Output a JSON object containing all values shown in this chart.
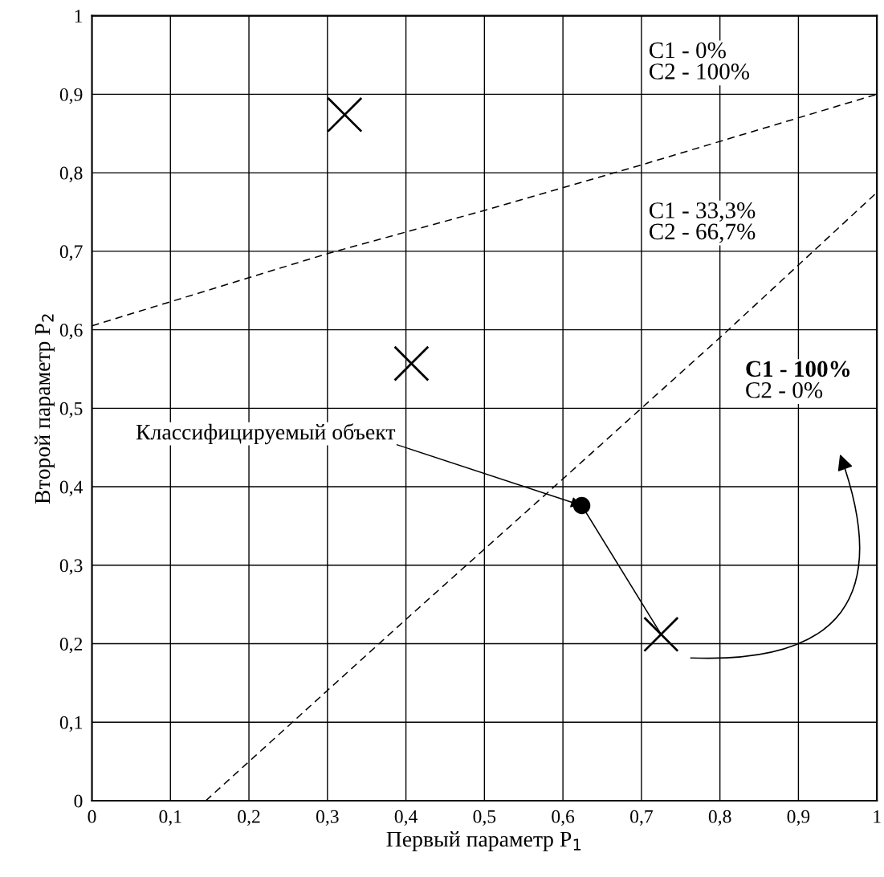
{
  "chart_data": {
    "type": "scatter",
    "xlabel": "Первый параметр P$_{1}$",
    "ylabel": "Второй параметр P$_{2}$",
    "xlim": [
      0,
      1
    ],
    "ylim": [
      0,
      1
    ],
    "xticks": [
      0,
      {
        "value": 0.1,
        "label": "0,1"
      },
      {
        "value": 0.2,
        "label": "0,2"
      },
      {
        "value": 0.3,
        "label": "0,3"
      },
      {
        "value": 0.4,
        "label": "0,4"
      },
      {
        "value": 0.5,
        "label": "0,5"
      },
      {
        "value": 0.6,
        "label": "0,6"
      },
      {
        "value": 0.7,
        "label": "0,7"
      },
      {
        "value": 0.8,
        "label": "0,8"
      },
      {
        "value": 0.9,
        "label": "0,9"
      },
      1
    ],
    "yticks": [
      0,
      {
        "value": 0.1,
        "label": "0,1"
      },
      {
        "value": 0.2,
        "label": "0,2"
      },
      {
        "value": 0.3,
        "label": "0,3"
      },
      {
        "value": 0.4,
        "label": "0,4"
      },
      {
        "value": 0.5,
        "label": "0,5"
      },
      {
        "value": 0.6,
        "label": "0,6"
      },
      {
        "value": 0.7,
        "label": "0,7"
      },
      {
        "value": 0.8,
        "label": "0,8"
      },
      {
        "value": 0.9,
        "label": "0,9"
      },
      1
    ],
    "grid": true,
    "series": [
      {
        "x": [
          0.322,
          0.407,
          0.725
        ],
        "values": [
          0.874,
          0.557,
          0.212
        ],
        "color": "#000000",
        "marker": "cross"
      },
      {
        "x": [
          0.624
        ],
        "values": [
          0.376
        ],
        "color": "#000000",
        "marker": "circle"
      },
      {
        "type": "line",
        "x": [
          0,
          0.3,
          0.5,
          0.7,
          1
        ],
        "values": [
          0.605,
          0.697,
          0.752,
          0.81,
          0.9
        ],
        "color": "#000000",
        "line_style": "dashed"
      },
      {
        "type": "line",
        "x": [
          0.145,
          0.4,
          0.6,
          0.8,
          1
        ],
        "values": [
          0,
          0.231,
          0.41,
          0.59,
          0.775
        ],
        "color": "#000000",
        "line_style": "dashed"
      },
      {
        "type": "line",
        "x": [
          0.624,
          0.725
        ],
        "values": [
          0.376,
          0.212
        ],
        "color": "#000000",
        "line_style": "solid"
      }
    ],
    "annotations": [
      "C1 - 0%\nC2 - 100%",
      "C1 - 33,3%\nC2 - 66,7%",
      "C1 - 100%\nC2 - 0%",
      {
        "text": "Классифицируемый объект",
        "x": 0.624,
        "y": 0.376
      }
    ],
    "legend": false
  }
}
